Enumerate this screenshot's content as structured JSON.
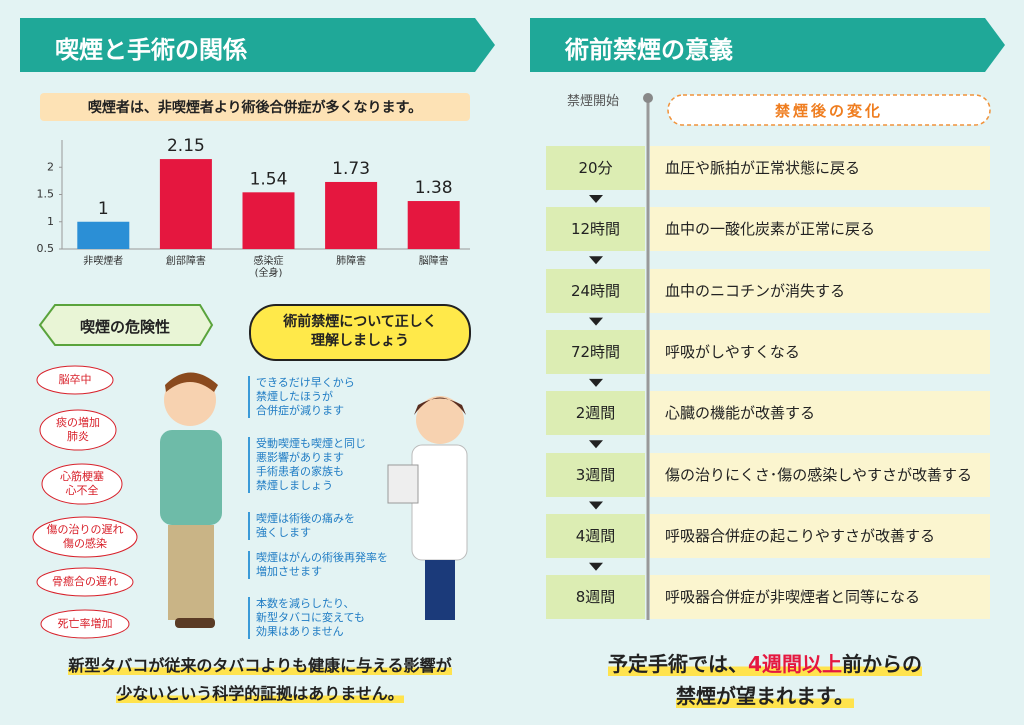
{
  "left": {
    "title": "喫煙と手術の関係",
    "subtitle": "喫煙者は、非喫煙者より術後合併症が多くなります。",
    "risk_title": "喫煙の危険性",
    "risks": [
      "脳卒中",
      "痰の増加\n肺炎",
      "心筋梗塞\n心不全",
      "傷の治りの遅れ\n傷の感染",
      "骨癒合の遅れ",
      "死亡率増加"
    ],
    "bubble": "術前禁煙について正しく\n理解しましょう",
    "tips": [
      "できるだけ早くから\n禁煙したほうが\n合併症が減ります",
      "受動喫煙も喫煙と同じ\n悪影響があります\n手術患者の家族も\n禁煙しましょう",
      "喫煙は術後の痛みを\n強くします",
      "喫煙はがんの術後再発率を\n増加させます",
      "本数を減らしたり、\n新型タバコに変えても\n効果はありません"
    ],
    "footer": "新型タバコが従来のタバコよりも健康に与える影響が\n少ないという科学的証拠はありません。"
  },
  "chart_data": {
    "type": "bar",
    "categories": [
      "非喫煙者",
      "創部障害",
      "感染症\n(全身)",
      "肺障害",
      "脳障害"
    ],
    "values": [
      1,
      2.15,
      1.54,
      1.73,
      1.38
    ],
    "colors": [
      "#2b8fd6",
      "#e5173f",
      "#e5173f",
      "#e5173f",
      "#e5173f"
    ],
    "ylim": [
      0.5,
      2.5
    ],
    "yticks": [
      0.5,
      1,
      1.5,
      2
    ],
    "grid": false
  },
  "right": {
    "title": "術前禁煙の意義",
    "start_label": "禁煙開始",
    "changes_title": "禁煙後の変化",
    "timeline": [
      {
        "time": "20分",
        "effect": "血圧や脈拍が正常状態に戻る"
      },
      {
        "time": "12時間",
        "effect": "血中の一酸化炭素が正常に戻る"
      },
      {
        "time": "24時間",
        "effect": "血中のニコチンが消失する"
      },
      {
        "time": "72時間",
        "effect": "呼吸がしやすくなる"
      },
      {
        "time": "2週間",
        "effect": "心臓の機能が改善する"
      },
      {
        "time": "3週間",
        "effect": "傷の治りにくさ･傷の感染しやすさが改善する"
      },
      {
        "time": "4週間",
        "effect": "呼吸器合併症の起こりやすさが改善する"
      },
      {
        "time": "8週間",
        "effect": "呼吸器合併症が非喫煙者と同等になる"
      }
    ],
    "footer": {
      "part1": "予定手術では、",
      "highlight": "4週間以上",
      "part2": "前からの",
      "line2": "禁煙が望まれます。"
    }
  }
}
